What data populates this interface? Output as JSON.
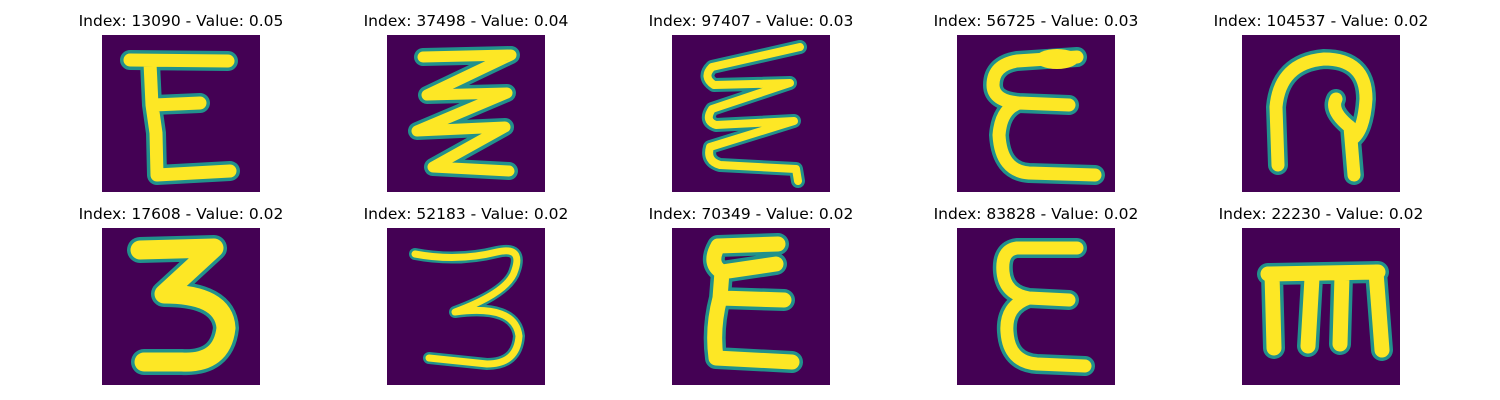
{
  "colors": {
    "background": "#440154",
    "stroke_core": "#fde725",
    "stroke_edge": "#21918c",
    "title_text": "#000000"
  },
  "panels": [
    {
      "title": "Index: 13090 - Value: 0.05",
      "glyph": "E"
    },
    {
      "title": "Index: 37498 - Value: 0.04",
      "glyph": "zigzag-3"
    },
    {
      "title": "Index: 97407 - Value: 0.03",
      "glyph": "zigzag-wavy"
    },
    {
      "title": "Index: 56725 - Value: 0.03",
      "glyph": "epsilon-E"
    },
    {
      "title": "Index: 104537 - Value: 0.02",
      "glyph": "loop-hook"
    },
    {
      "title": "Index: 17608 - Value: 0.02",
      "glyph": "3"
    },
    {
      "title": "Index: 52183 - Value: 0.02",
      "glyph": "3-thin"
    },
    {
      "title": "Index: 70349 - Value: 0.02",
      "glyph": "epsilon-zigzag"
    },
    {
      "title": "Index: 83828 - Value: 0.02",
      "glyph": "epsilon"
    },
    {
      "title": "Index: 22230 - Value: 0.02",
      "glyph": "m"
    }
  ]
}
